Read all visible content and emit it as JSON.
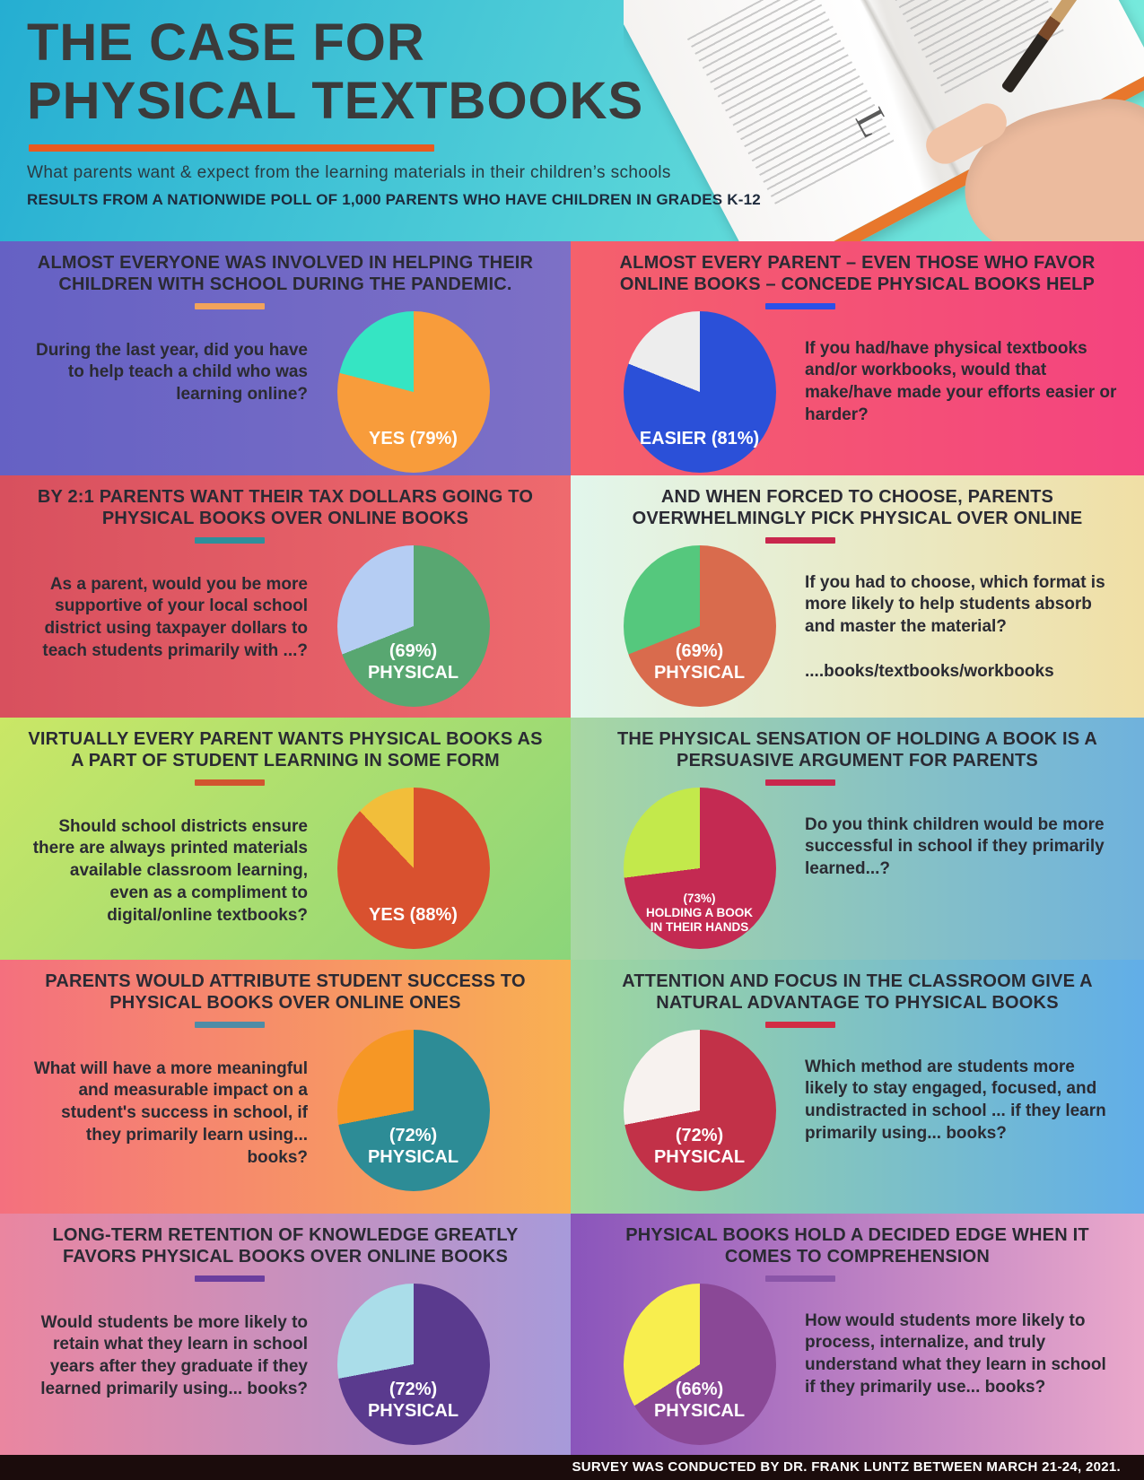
{
  "header": {
    "title_line1": "THE CASE FOR",
    "title_line2": "PHYSICAL TEXTBOOKS",
    "subtitle": "What parents want & expect from the learning materials in their children’s schools",
    "results_line": "RESULTS FROM A NATIONWIDE POLL OF 1,000 PARENTS WHO HAVE CHILDREN IN GRADES K-12",
    "accent_color": "#e85a1f",
    "bg": [
      "#25aed2",
      "#7ceedd"
    ],
    "bg_dir": "110deg"
  },
  "footer": {
    "text": "SURVEY WAS CONDUCTED BY DR. FRANK LUNTZ BETWEEN MARCH 21-24, 2021.",
    "bg": "#1b0c0c"
  },
  "panels": [
    {
      "heading": "ALMOST EVERYONE WAS INVOLVED IN HELPING THEIR CHILDREN WITH SCHOOL DURING THE PANDEMIC.",
      "question": "During the last year, did you have to help teach a child who was learning online?",
      "pie_label": "YES (79%)",
      "divider_color": "#f2a35c",
      "bg": [
        "#6561c4",
        "#7d70c6"
      ],
      "bg_dir": "90deg"
    },
    {
      "heading": "ALMOST EVERY PARENT – EVEN THOSE WHO FAVOR ONLINE BOOKS – CONCEDE PHYSICAL BOOKS HELP",
      "question": "If you had/have physical textbooks and/or workbooks, would that make/have made your efforts easier or harder?",
      "pie_label": "EASIER (81%)",
      "divider_color": "#2b50e8",
      "bg": [
        "#f4616c",
        "#f4437f"
      ],
      "bg_dir": "90deg"
    },
    {
      "heading": "BY 2:1 PARENTS WANT THEIR TAX DOLLARS GOING TO PHYSICAL BOOKS OVER ONLINE BOOKS",
      "question": "As a parent, would you be more supportive of your local school district using taxpayer dollars to teach students primarily with ...?",
      "pie_label": "(69%)\nPHYSICAL",
      "divider_color": "#2f8f9b",
      "bg": [
        "#d8505e",
        "#ee6a6e"
      ],
      "bg_dir": "90deg"
    },
    {
      "heading": "AND WHEN FORCED TO CHOOSE, PARENTS OVERWHELMINGLY PICK PHYSICAL OVER ONLINE",
      "question": "If you had to choose, which format is more likely to help students absorb and master the material?",
      "note": "....books/textbooks/workbooks",
      "pie_label": "(69%)\nPHYSICAL",
      "divider_color": "#c9274d",
      "bg": [
        "#e2f6ec",
        "#f0dfa5"
      ],
      "bg_dir": "90deg"
    },
    {
      "heading": "VIRTUALLY EVERY PARENT WANTS PHYSICAL BOOKS AS A PART OF STUDENT LEARNING IN SOME FORM",
      "question": "Should school districts ensure there are always printed materials available classroom learning, even as a compliment to digital/online textbooks?",
      "pie_label": "YES (88%)",
      "divider_color": "#d1542f",
      "bg": [
        "#cae766",
        "#8bd57a"
      ],
      "bg_dir": "135deg"
    },
    {
      "heading": "THE PHYSICAL SENSATION OF HOLDING A BOOK IS A PERSUASIVE ARGUMENT FOR PARENTS",
      "question": "Do you think children would be more successful in school if they primarily learned...?",
      "pie_label": "(73%)\nHOLDING A BOOK\nIN THEIR HANDS",
      "divider_color": "#c9274d",
      "bg": [
        "#a8d7a3",
        "#6fb2dd"
      ],
      "bg_dir": "90deg"
    },
    {
      "heading": "PARENTS WOULD ATTRIBUTE STUDENT SUCCESS TO PHYSICAL BOOKS OVER ONLINE ONES",
      "question": "What will have a more meaningful and measurable impact on a student's success in school, if they primarily learn using... books?",
      "pie_label": "(72%)\nPHYSICAL",
      "divider_color": "#4e8ca6",
      "bg": [
        "#f4707e",
        "#f9b052"
      ],
      "bg_dir": "90deg"
    },
    {
      "heading": "ATTENTION AND FOCUS IN THE CLASSROOM GIVE A NATURAL ADVANTAGE TO PHYSICAL BOOKS",
      "question": "Which method are students more likely to stay engaged, focused, and undistracted in school ... if they learn primarily using... books?",
      "pie_label": "(72%)\nPHYSICAL",
      "divider_color": "#d22c44",
      "bg": [
        "#9fd79e",
        "#61aee8"
      ],
      "bg_dir": "90deg"
    },
    {
      "heading": "LONG-TERM RETENTION OF KNOWLEDGE GREATLY FAVORS PHYSICAL BOOKS OVER ONLINE BOOKS",
      "question": "Would students be more likely to retain what they learn in school years after they graduate if they learned primarily using... books?",
      "pie_label": "(72%)\nPHYSICAL",
      "divider_color": "#6b3e9e",
      "bg": [
        "#ea86a0",
        "#a79ada"
      ],
      "bg_dir": "90deg"
    },
    {
      "heading": "PHYSICAL BOOKS HOLD A DECIDED EDGE WHEN IT COMES TO COMPREHENSION",
      "question": "How would students more likely to process, internalize, and truly understand what they learn in school if they primarily use... books?",
      "pie_label": "(66%)\nPHYSICAL",
      "divider_color": "#8a55a8",
      "bg": [
        "#8a55bb",
        "#eba9cb"
      ],
      "bg_dir": "90deg"
    }
  ],
  "chart_data": [
    {
      "type": "pie",
      "title": "Helped teach a child learning online during the pandemic",
      "slices": [
        {
          "label": "YES (79%)",
          "value": 79,
          "color": "#f89c3b"
        },
        {
          "label": "",
          "value": 21,
          "color": "#35e5c3"
        }
      ]
    },
    {
      "type": "pie",
      "title": "Physical textbooks/workbooks made efforts easier or harder",
      "slices": [
        {
          "label": "EASIER (81%)",
          "value": 81,
          "color": "#2b50d8"
        },
        {
          "label": "",
          "value": 19,
          "color": "#ededed"
        }
      ]
    },
    {
      "type": "pie",
      "title": "Tax dollars: teach students primarily with ...",
      "slices": [
        {
          "label": "(69%) PHYSICAL",
          "value": 69,
          "color": "#58a771"
        },
        {
          "label": "",
          "value": 31,
          "color": "#b5cdf3"
        }
      ]
    },
    {
      "type": "pie",
      "title": "Format more likely to help students absorb and master material",
      "slices": [
        {
          "label": "(69%) PHYSICAL",
          "value": 69,
          "color": "#d96b4d"
        },
        {
          "label": "",
          "value": 31,
          "color": "#55c87d"
        }
      ]
    },
    {
      "type": "pie",
      "title": "Districts should ensure printed materials are always available",
      "slices": [
        {
          "label": "YES (88%)",
          "value": 88,
          "color": "#d9512f"
        },
        {
          "label": "",
          "value": 12,
          "color": "#f2be3a"
        }
      ]
    },
    {
      "type": "pie",
      "title": "Children more successful if they primarily learned...",
      "slices": [
        {
          "label": "(73%) HOLDING A BOOK IN THEIR HANDS",
          "value": 73,
          "color": "#c42a52"
        },
        {
          "label": "",
          "value": 27,
          "color": "#c3e94b"
        }
      ]
    },
    {
      "type": "pie",
      "title": "More meaningful impact on a student's success",
      "slices": [
        {
          "label": "(72%) PHYSICAL",
          "value": 72,
          "color": "#2d8c96"
        },
        {
          "label": "",
          "value": 28,
          "color": "#f69725"
        }
      ]
    },
    {
      "type": "pie",
      "title": "Students more likely to stay engaged, focused, undistracted",
      "slices": [
        {
          "label": "(72%) PHYSICAL",
          "value": 72,
          "color": "#c23148"
        },
        {
          "label": "",
          "value": 28,
          "color": "#f7f2ef"
        }
      ]
    },
    {
      "type": "pie",
      "title": "Students more likely to retain what they learn",
      "slices": [
        {
          "label": "(72%) PHYSICAL",
          "value": 72,
          "color": "#5a3a8e"
        },
        {
          "label": "",
          "value": 28,
          "color": "#aadde9"
        }
      ]
    },
    {
      "type": "pie",
      "title": "Students process, internalize and understand best with",
      "slices": [
        {
          "label": "(66%) PHYSICAL",
          "value": 66,
          "color": "#8a4896"
        },
        {
          "label": "",
          "value": 34,
          "color": "#f8ee4e"
        }
      ]
    }
  ]
}
